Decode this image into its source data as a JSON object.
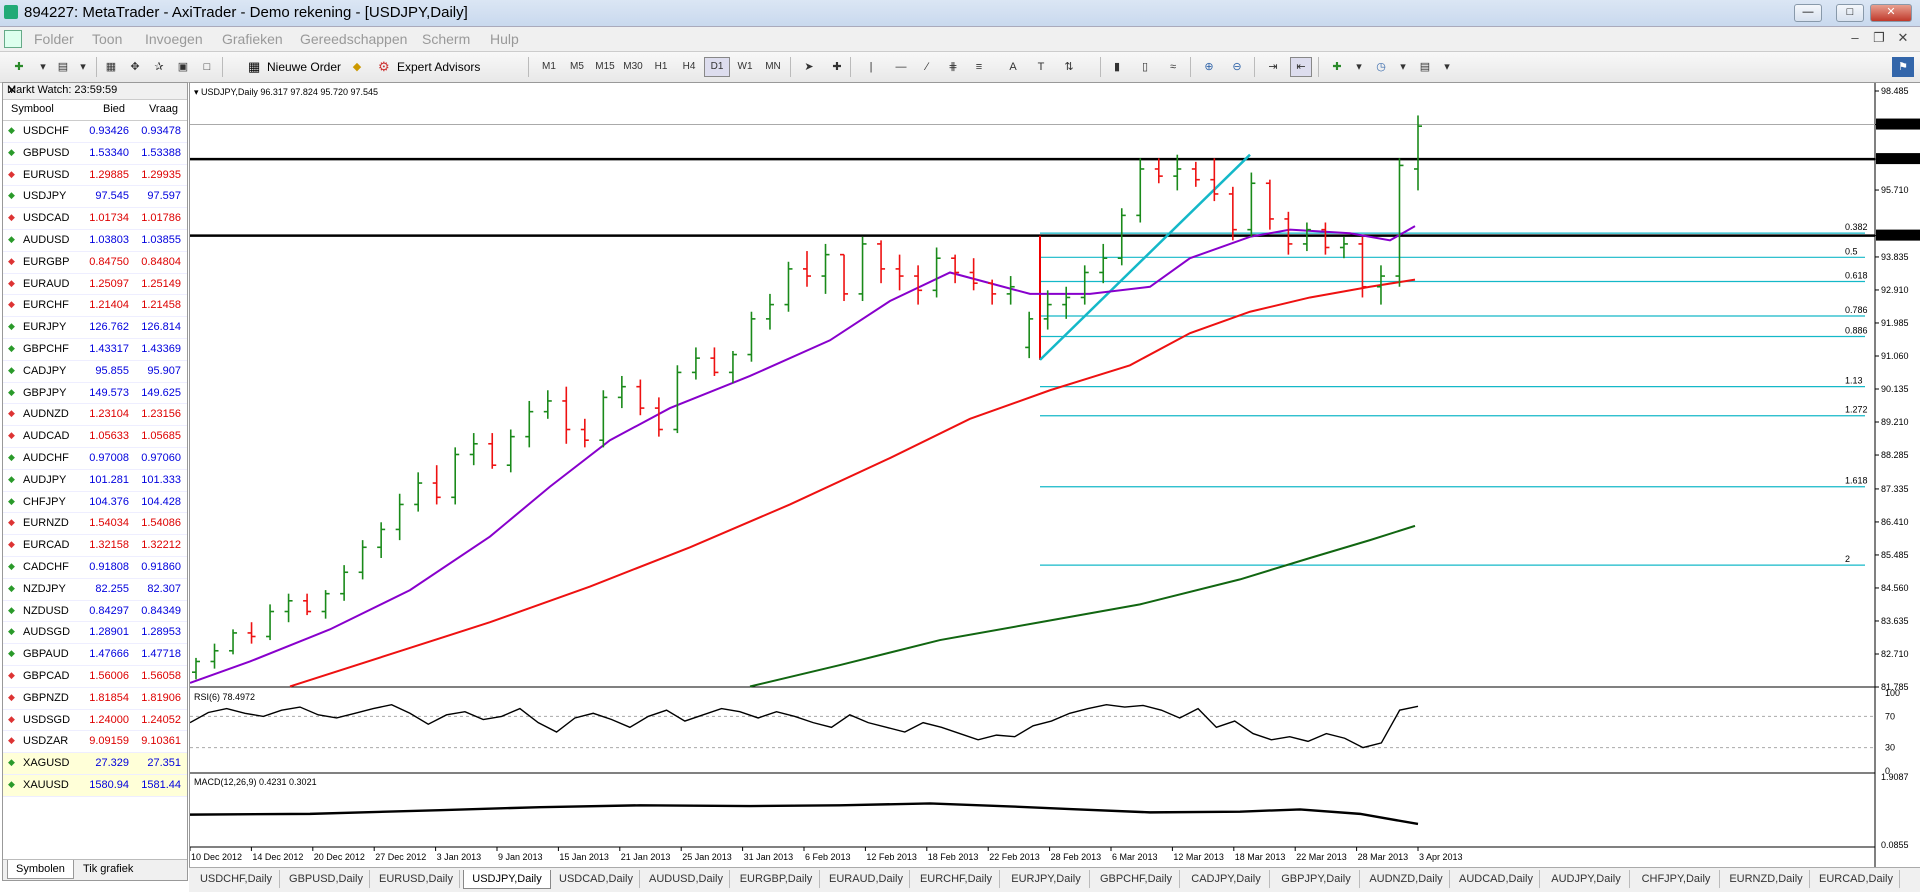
{
  "window": {
    "title": "894227: MetaTrader - AxiTrader - Demo rekening - [USDJPY,Daily]"
  },
  "menu": [
    "Folder",
    "Toon",
    "Invoegen",
    "Grafieken",
    "Gereedschappen",
    "Scherm",
    "Hulp"
  ],
  "toolbar": {
    "new_order": "Nieuwe Order",
    "expert_advisors": "Expert Advisors",
    "timeframes": [
      "M1",
      "M5",
      "M15",
      "M30",
      "H1",
      "H4",
      "D1",
      "W1",
      "MN"
    ],
    "active_timeframe": "D1"
  },
  "market_watch": {
    "title": "Markt Watch: 23:59:59",
    "col_symbol": "Symbool",
    "col_bid": "Bied",
    "col_ask": "Vraag",
    "rows": [
      {
        "sym": "USDCHF",
        "bid": "0.93426",
        "ask": "0.93478",
        "dir": "up"
      },
      {
        "sym": "GBPUSD",
        "bid": "1.53340",
        "ask": "1.53388",
        "dir": "up"
      },
      {
        "sym": "EURUSD",
        "bid": "1.29885",
        "ask": "1.29935",
        "dir": "down"
      },
      {
        "sym": "USDJPY",
        "bid": "97.545",
        "ask": "97.597",
        "dir": "up"
      },
      {
        "sym": "USDCAD",
        "bid": "1.01734",
        "ask": "1.01786",
        "dir": "down"
      },
      {
        "sym": "AUDUSD",
        "bid": "1.03803",
        "ask": "1.03855",
        "dir": "up"
      },
      {
        "sym": "EURGBP",
        "bid": "0.84750",
        "ask": "0.84804",
        "dir": "down"
      },
      {
        "sym": "EURAUD",
        "bid": "1.25097",
        "ask": "1.25149",
        "dir": "down"
      },
      {
        "sym": "EURCHF",
        "bid": "1.21404",
        "ask": "1.21458",
        "dir": "down"
      },
      {
        "sym": "EURJPY",
        "bid": "126.762",
        "ask": "126.814",
        "dir": "up"
      },
      {
        "sym": "GBPCHF",
        "bid": "1.43317",
        "ask": "1.43369",
        "dir": "up"
      },
      {
        "sym": "CADJPY",
        "bid": "95.855",
        "ask": "95.907",
        "dir": "up"
      },
      {
        "sym": "GBPJPY",
        "bid": "149.573",
        "ask": "149.625",
        "dir": "up"
      },
      {
        "sym": "AUDNZD",
        "bid": "1.23104",
        "ask": "1.23156",
        "dir": "down"
      },
      {
        "sym": "AUDCAD",
        "bid": "1.05633",
        "ask": "1.05685",
        "dir": "down"
      },
      {
        "sym": "AUDCHF",
        "bid": "0.97008",
        "ask": "0.97060",
        "dir": "up"
      },
      {
        "sym": "AUDJPY",
        "bid": "101.281",
        "ask": "101.333",
        "dir": "up"
      },
      {
        "sym": "CHFJPY",
        "bid": "104.376",
        "ask": "104.428",
        "dir": "up"
      },
      {
        "sym": "EURNZD",
        "bid": "1.54034",
        "ask": "1.54086",
        "dir": "down"
      },
      {
        "sym": "EURCAD",
        "bid": "1.32158",
        "ask": "1.32212",
        "dir": "down"
      },
      {
        "sym": "CADCHF",
        "bid": "0.91808",
        "ask": "0.91860",
        "dir": "up"
      },
      {
        "sym": "NZDJPY",
        "bid": "82.255",
        "ask": "82.307",
        "dir": "up"
      },
      {
        "sym": "NZDUSD",
        "bid": "0.84297",
        "ask": "0.84349",
        "dir": "up"
      },
      {
        "sym": "AUDSGD",
        "bid": "1.28901",
        "ask": "1.28953",
        "dir": "up"
      },
      {
        "sym": "GBPAUD",
        "bid": "1.47666",
        "ask": "1.47718",
        "dir": "up"
      },
      {
        "sym": "GBPCAD",
        "bid": "1.56006",
        "ask": "1.56058",
        "dir": "down"
      },
      {
        "sym": "GBPNZD",
        "bid": "1.81854",
        "ask": "1.81906",
        "dir": "down"
      },
      {
        "sym": "USDSGD",
        "bid": "1.24000",
        "ask": "1.24052",
        "dir": "down"
      },
      {
        "sym": "USDZAR",
        "bid": "9.09159",
        "ask": "9.10361",
        "dir": "down"
      },
      {
        "sym": "XAGUSD",
        "bid": "27.329",
        "ask": "27.351",
        "dir": "up"
      },
      {
        "sym": "XAUUSD",
        "bid": "1580.94",
        "ask": "1581.44",
        "dir": "up"
      }
    ],
    "tabs": [
      "Symbolen",
      "Tik grafiek"
    ]
  },
  "chart_tabs": [
    "USDCHF,Daily",
    "GBPUSD,Daily",
    "EURUSD,Daily",
    "USDJPY,Daily",
    "USDCAD,Daily",
    "AUDUSD,Daily",
    "EURGBP,Daily",
    "EURAUD,Daily",
    "EURCHF,Daily",
    "EURJPY,Daily",
    "GBPCHF,Daily",
    "CADJPY,Daily",
    "GBPJPY,Daily",
    "AUDNZD,Daily",
    "AUDCAD,Daily",
    "AUDJPY,Daily",
    "CHFJPY,Daily",
    "EURNZD,Daily",
    "EURCAD,Daily"
  ],
  "active_chart_tab": "USDJPY,Daily",
  "chart_data": {
    "type": "ohlc",
    "header": "USDJPY,Daily  96.317 97.824 95.720 97.545",
    "price_ticks": [
      "98.485",
      "97.545",
      "96.577",
      "95.710",
      "94.433",
      "93.835",
      "92.910",
      "91.985",
      "91.060",
      "90.135",
      "89.210",
      "88.285",
      "87.335",
      "86.410",
      "85.485",
      "84.560",
      "83.635",
      "82.710",
      "81.785"
    ],
    "price_range": [
      81.785,
      98.485
    ],
    "current_price": "97.545",
    "horizontal_lines": [
      "96.577",
      "94.433"
    ],
    "fib_levels": [
      "0.382",
      "0.5",
      "0.618",
      "0.786",
      "0.886",
      "1.13",
      "1.272",
      "1.618",
      "2"
    ],
    "x_labels": [
      "10 Dec 2012",
      "14 Dec 2012",
      "20 Dec 2012",
      "27 Dec 2012",
      "3 Jan 2013",
      "9 Jan 2013",
      "15 Jan 2013",
      "21 Jan 2013",
      "25 Jan 2013",
      "31 Jan 2013",
      "6 Feb 2013",
      "12 Feb 2013",
      "18 Feb 2013",
      "22 Feb 2013",
      "28 Feb 2013",
      "6 Mar 2013",
      "12 Mar 2013",
      "18 Mar 2013",
      "22 Mar 2013",
      "28 Mar 2013",
      "3 Apr 2013"
    ],
    "rsi": {
      "label": "RSI(6) 78.4972",
      "ticks": [
        "100",
        "70",
        "30",
        "0"
      ]
    },
    "macd": {
      "label": "MACD(12,26,9) 0.4231 0.3021",
      "ticks": [
        "1.9087",
        "0.0855"
      ]
    }
  }
}
